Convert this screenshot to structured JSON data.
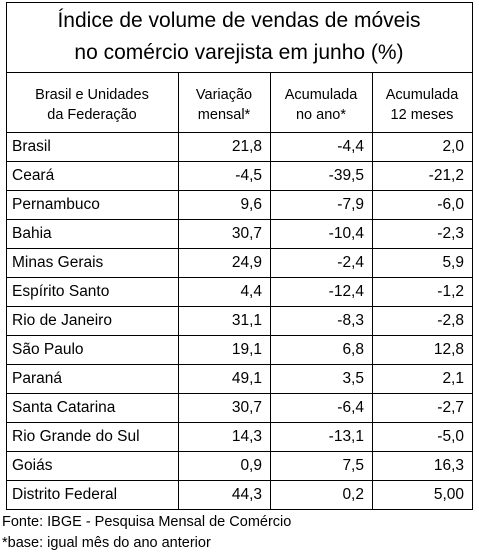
{
  "chart_data": {
    "type": "table",
    "title_lines": [
      "Índice de volume de vendas de móveis",
      "no comércio varejista em junho (%)"
    ],
    "columns": [
      [
        "Brasil e Unidades",
        "da Federação"
      ],
      [
        "Variação",
        "mensal*"
      ],
      [
        "Acumulada",
        "no ano*"
      ],
      [
        "Acumulada",
        "12 meses"
      ]
    ],
    "rows": [
      {
        "name": "Brasil",
        "values": [
          "21,8",
          "-4,4",
          "2,0"
        ]
      },
      {
        "name": "Ceará",
        "values": [
          "-4,5",
          "-39,5",
          "-21,2"
        ]
      },
      {
        "name": "Pernambuco",
        "values": [
          "9,6",
          "-7,9",
          "-6,0"
        ]
      },
      {
        "name": "Bahia",
        "values": [
          "30,7",
          "-10,4",
          "-2,3"
        ]
      },
      {
        "name": "Minas Gerais",
        "values": [
          "24,9",
          "-2,4",
          "5,9"
        ]
      },
      {
        "name": "Espírito Santo",
        "values": [
          "4,4",
          "-12,4",
          "-1,2"
        ]
      },
      {
        "name": "Rio de Janeiro",
        "values": [
          "31,1",
          "-8,3",
          "-2,8"
        ]
      },
      {
        "name": "São Paulo",
        "values": [
          "19,1",
          "6,8",
          "12,8"
        ]
      },
      {
        "name": "Paraná",
        "values": [
          "49,1",
          "3,5",
          "2,1"
        ]
      },
      {
        "name": "Santa Catarina",
        "values": [
          "30,7",
          "-6,4",
          "-2,7"
        ]
      },
      {
        "name": "Rio Grande do Sul",
        "values": [
          "14,3",
          "-13,1",
          "-5,0"
        ]
      },
      {
        "name": "Goiás",
        "values": [
          "0,9",
          "7,5",
          "16,3"
        ]
      },
      {
        "name": "Distrito Federal",
        "values": [
          "44,3",
          "0,2",
          "5,00"
        ]
      }
    ],
    "notes": [
      "Fonte: IBGE - Pesquisa Mensal de Comércio",
      "*base: igual mês do ano anterior"
    ]
  }
}
